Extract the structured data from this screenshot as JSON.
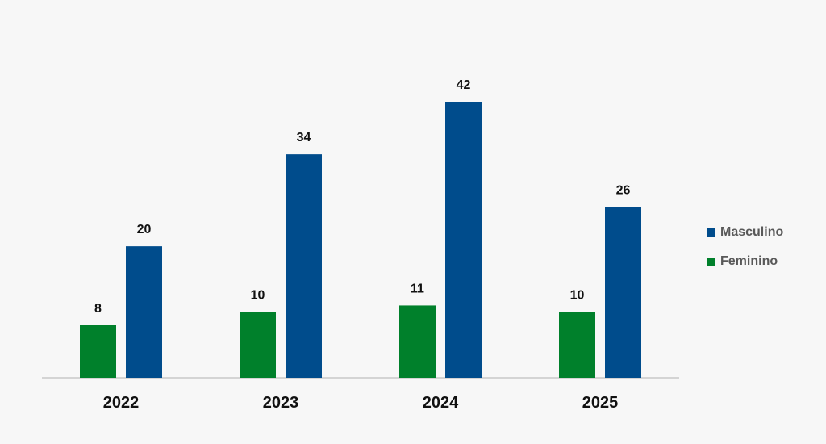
{
  "chart_data": {
    "type": "bar",
    "categories": [
      "2022",
      "2023",
      "2024",
      "2025"
    ],
    "series": [
      {
        "name": "Feminino",
        "values": [
          8,
          10,
          11,
          10
        ],
        "color": "#00802b"
      },
      {
        "name": "Masculino",
        "values": [
          20,
          34,
          42,
          26
        ],
        "color": "#004c8c"
      }
    ],
    "title": "",
    "xlabel": "",
    "ylabel": "",
    "ylim": [
      0,
      42
    ],
    "grid": false,
    "legend_position": "right",
    "legend_order": [
      "Masculino",
      "Feminino"
    ]
  }
}
